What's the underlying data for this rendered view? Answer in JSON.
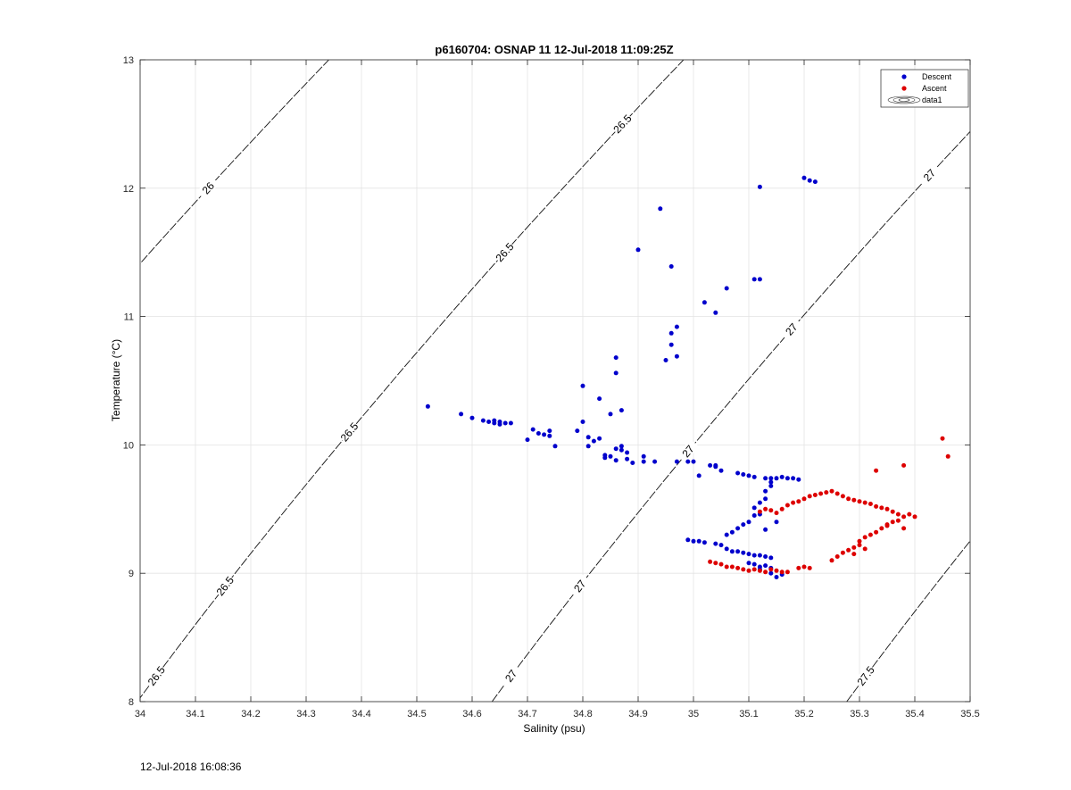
{
  "chart_data": {
    "type": "scatter",
    "title": "p6160704: OSNAP 11 12-Jul-2018 11:09:25Z",
    "xlabel": "Salinity (psu)",
    "ylabel": "Temperature (°C)",
    "xlim": [
      34,
      35.5
    ],
    "ylim": [
      8,
      13
    ],
    "x_ticks": [
      "34",
      "34.1",
      "34.2",
      "34.3",
      "34.4",
      "34.5",
      "34.6",
      "34.7",
      "34.8",
      "34.9",
      "35",
      "35.1",
      "35.2",
      "35.3",
      "35.4",
      "35.5"
    ],
    "y_ticks": [
      "8",
      "9",
      "10",
      "11",
      "12",
      "13"
    ],
    "grid": true,
    "legend_position": "top-right",
    "legend": [
      "Descent",
      "Ascent",
      "data1"
    ],
    "density_contours": [
      {
        "sigma": "26",
        "labels_at_T": [
          12.0,
          11.0
        ]
      },
      {
        "sigma": "26.5",
        "labels_at_T": [
          12.5,
          11.5,
          10.1,
          8.9,
          8.2
        ]
      },
      {
        "sigma": "27",
        "labels_at_T": [
          12.1,
          10.9,
          9.95,
          8.9,
          8.2
        ]
      },
      {
        "sigma": "27.5",
        "labels_at_T": [
          8.2
        ]
      }
    ],
    "series": [
      {
        "name": "Descent",
        "color": "#0000cc",
        "points": [
          [
            34.52,
            10.3
          ],
          [
            34.58,
            10.24
          ],
          [
            34.6,
            10.21
          ],
          [
            34.62,
            10.19
          ],
          [
            34.63,
            10.18
          ],
          [
            34.64,
            10.17
          ],
          [
            34.64,
            10.19
          ],
          [
            34.65,
            10.16
          ],
          [
            34.65,
            10.18
          ],
          [
            34.66,
            10.17
          ],
          [
            34.67,
            10.17
          ],
          [
            34.7,
            10.04
          ],
          [
            34.71,
            10.12
          ],
          [
            34.72,
            10.09
          ],
          [
            34.73,
            10.08
          ],
          [
            34.74,
            10.11
          ],
          [
            34.74,
            10.07
          ],
          [
            34.75,
            9.99
          ],
          [
            34.79,
            10.11
          ],
          [
            34.8,
            10.18
          ],
          [
            34.8,
            10.46
          ],
          [
            34.81,
            10.06
          ],
          [
            34.81,
            9.99
          ],
          [
            34.82,
            10.03
          ],
          [
            34.83,
            10.05
          ],
          [
            34.83,
            10.36
          ],
          [
            34.84,
            9.92
          ],
          [
            34.84,
            9.9
          ],
          [
            34.85,
            10.24
          ],
          [
            34.85,
            9.91
          ],
          [
            34.86,
            9.88
          ],
          [
            34.86,
            9.97
          ],
          [
            34.86,
            10.56
          ],
          [
            34.86,
            10.68
          ],
          [
            34.87,
            9.99
          ],
          [
            34.87,
            9.96
          ],
          [
            34.87,
            10.27
          ],
          [
            34.88,
            9.94
          ],
          [
            34.88,
            9.89
          ],
          [
            34.89,
            9.86
          ],
          [
            34.9,
            11.52
          ],
          [
            34.91,
            9.91
          ],
          [
            34.91,
            9.87
          ],
          [
            34.93,
            9.87
          ],
          [
            34.94,
            11.84
          ],
          [
            34.95,
            10.66
          ],
          [
            34.96,
            10.78
          ],
          [
            34.96,
            10.87
          ],
          [
            34.96,
            11.39
          ],
          [
            34.97,
            10.69
          ],
          [
            34.97,
            10.92
          ],
          [
            34.97,
            9.87
          ],
          [
            34.99,
            9.87
          ],
          [
            35.0,
            9.87
          ],
          [
            35.01,
            9.76
          ],
          [
            35.02,
            11.11
          ],
          [
            35.03,
            9.84
          ],
          [
            35.04,
            9.84
          ],
          [
            35.04,
            9.83
          ],
          [
            35.04,
            11.03
          ],
          [
            35.05,
            9.8
          ],
          [
            35.06,
            11.22
          ],
          [
            35.08,
            9.78
          ],
          [
            35.09,
            9.77
          ],
          [
            35.1,
            9.76
          ],
          [
            35.11,
            9.75
          ],
          [
            35.11,
            11.29
          ],
          [
            35.12,
            11.29
          ],
          [
            35.12,
            12.01
          ],
          [
            35.13,
            9.74
          ],
          [
            35.14,
            9.74
          ],
          [
            35.15,
            9.74
          ],
          [
            35.16,
            9.75
          ],
          [
            35.17,
            9.74
          ],
          [
            35.18,
            9.74
          ],
          [
            35.19,
            9.73
          ],
          [
            35.2,
            12.08
          ],
          [
            35.21,
            12.06
          ],
          [
            35.22,
            12.05
          ],
          [
            35.13,
            9.64
          ],
          [
            35.14,
            9.68
          ],
          [
            35.14,
            9.71
          ],
          [
            35.13,
            9.58
          ],
          [
            35.12,
            9.55
          ],
          [
            35.11,
            9.51
          ],
          [
            35.11,
            9.45
          ],
          [
            35.1,
            9.4
          ],
          [
            35.09,
            9.38
          ],
          [
            35.08,
            9.35
          ],
          [
            35.07,
            9.32
          ],
          [
            35.06,
            9.3
          ],
          [
            35.12,
            9.46
          ],
          [
            35.13,
            9.34
          ],
          [
            35.15,
            9.4
          ],
          [
            34.99,
            9.26
          ],
          [
            35.0,
            9.25
          ],
          [
            35.01,
            9.25
          ],
          [
            35.02,
            9.24
          ],
          [
            35.04,
            9.23
          ],
          [
            35.05,
            9.22
          ],
          [
            35.06,
            9.19
          ],
          [
            35.07,
            9.17
          ],
          [
            35.08,
            9.17
          ],
          [
            35.09,
            9.16
          ],
          [
            35.1,
            9.15
          ],
          [
            35.11,
            9.14
          ],
          [
            35.12,
            9.14
          ],
          [
            35.13,
            9.13
          ],
          [
            35.14,
            9.12
          ],
          [
            35.1,
            9.08
          ],
          [
            35.11,
            9.07
          ],
          [
            35.12,
            9.05
          ],
          [
            35.13,
            9.06
          ],
          [
            35.14,
            9.04
          ],
          [
            35.15,
            8.97
          ],
          [
            35.16,
            8.99
          ],
          [
            35.14,
            9.0
          ],
          [
            35.12,
            9.03
          ]
        ]
      },
      {
        "name": "Ascent",
        "color": "#dd0000",
        "points": [
          [
            35.03,
            9.09
          ],
          [
            35.04,
            9.08
          ],
          [
            35.05,
            9.07
          ],
          [
            35.06,
            9.05
          ],
          [
            35.07,
            9.05
          ],
          [
            35.08,
            9.04
          ],
          [
            35.09,
            9.03
          ],
          [
            35.1,
            9.02
          ],
          [
            35.11,
            9.03
          ],
          [
            35.12,
            9.02
          ],
          [
            35.13,
            9.01
          ],
          [
            35.14,
            9.03
          ],
          [
            35.15,
            9.02
          ],
          [
            35.16,
            9.01
          ],
          [
            35.17,
            9.01
          ],
          [
            35.19,
            9.04
          ],
          [
            35.2,
            9.05
          ],
          [
            35.21,
            9.04
          ],
          [
            35.25,
            9.1
          ],
          [
            35.26,
            9.13
          ],
          [
            35.27,
            9.16
          ],
          [
            35.28,
            9.18
          ],
          [
            35.29,
            9.2
          ],
          [
            35.3,
            9.22
          ],
          [
            35.3,
            9.25
          ],
          [
            35.31,
            9.28
          ],
          [
            35.29,
            9.15
          ],
          [
            35.31,
            9.19
          ],
          [
            35.12,
            9.48
          ],
          [
            35.13,
            9.5
          ],
          [
            35.14,
            9.49
          ],
          [
            35.15,
            9.47
          ],
          [
            35.16,
            9.5
          ],
          [
            35.17,
            9.53
          ],
          [
            35.18,
            9.55
          ],
          [
            35.19,
            9.56
          ],
          [
            35.2,
            9.58
          ],
          [
            35.21,
            9.6
          ],
          [
            35.22,
            9.61
          ],
          [
            35.23,
            9.62
          ],
          [
            35.24,
            9.63
          ],
          [
            35.25,
            9.64
          ],
          [
            35.26,
            9.62
          ],
          [
            35.27,
            9.6
          ],
          [
            35.28,
            9.58
          ],
          [
            35.29,
            9.57
          ],
          [
            35.3,
            9.56
          ],
          [
            35.31,
            9.55
          ],
          [
            35.32,
            9.54
          ],
          [
            35.33,
            9.52
          ],
          [
            35.34,
            9.51
          ],
          [
            35.35,
            9.5
          ],
          [
            35.36,
            9.48
          ],
          [
            35.37,
            9.46
          ],
          [
            35.38,
            9.44
          ],
          [
            35.39,
            9.46
          ],
          [
            35.4,
            9.44
          ],
          [
            35.37,
            9.41
          ],
          [
            35.36,
            9.4
          ],
          [
            35.35,
            9.38
          ],
          [
            35.34,
            9.35
          ],
          [
            35.33,
            9.32
          ],
          [
            35.32,
            9.3
          ],
          [
            35.38,
            9.35
          ],
          [
            35.35,
            9.37
          ],
          [
            35.33,
            9.8
          ],
          [
            35.38,
            9.84
          ],
          [
            35.45,
            10.05
          ],
          [
            35.46,
            9.91
          ]
        ]
      }
    ]
  },
  "footer": {
    "timestamp": "12-Jul-2018 16:08:36"
  }
}
